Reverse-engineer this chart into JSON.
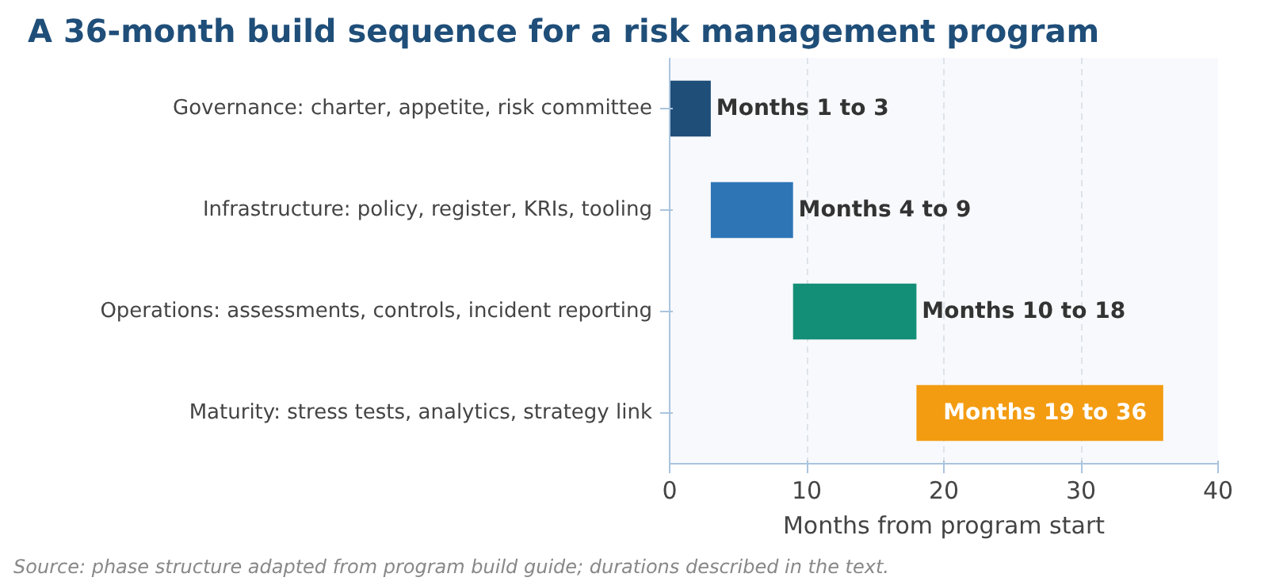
{
  "chart_data": {
    "type": "bar",
    "orientation": "horizontal",
    "title": "A 36-month build sequence for a risk management program",
    "categories": [
      "Governance: charter, appetite, risk committee",
      "Infrastructure: policy, register, KRIs, tooling",
      "Operations: assessments, controls, incident reporting",
      "Maturity: stress tests, analytics, strategy link"
    ],
    "base": [
      0,
      3,
      9,
      18
    ],
    "values": [
      3,
      6,
      9,
      18
    ],
    "colors": [
      "#1f4e79",
      "#2e75b6",
      "#148f77",
      "#f39c12"
    ],
    "value_labels": [
      "Months 1 to 3",
      "Months 4 to 9",
      "Months 10 to 18",
      "Months 19 to 36"
    ],
    "xlim": [
      0,
      40
    ],
    "xticks": [
      0,
      10,
      20,
      30,
      40
    ],
    "xlabel": "Months from program start",
    "grid": "x",
    "annotations": [
      "Source: phase structure adapted from program build guide; durations described in the text."
    ]
  }
}
